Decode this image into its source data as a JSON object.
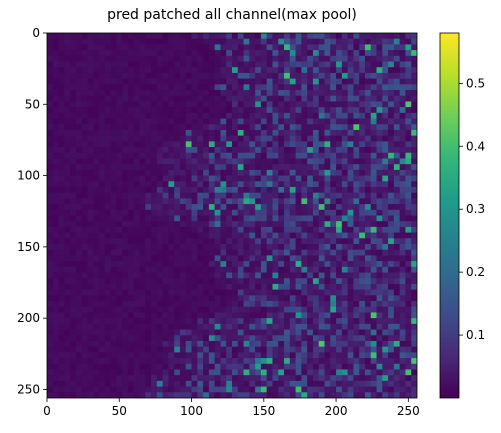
{
  "chart_data": {
    "type": "heatmap",
    "title": "pred patched all channel(max pool)",
    "xlabel": "",
    "ylabel": "",
    "xlim": [
      0,
      256
    ],
    "ylim": [
      256,
      0
    ],
    "xticks": [
      0,
      50,
      100,
      150,
      200,
      250
    ],
    "yticks": [
      0,
      50,
      100,
      150,
      200,
      250
    ],
    "colormap": "viridis",
    "colorbar": {
      "range": [
        0,
        0.58
      ],
      "ticks": [
        0.1,
        0.2,
        0.3,
        0.4,
        0.5
      ],
      "tick_labels": [
        "0.1",
        "0.2",
        "0.3",
        "0.4",
        "0.5"
      ]
    },
    "description_regions": [
      {
        "cols": [
          0,
          128
        ],
        "rows": [
          0,
          256
        ],
        "level": "near 0 (dark purple)"
      },
      {
        "cols": [
          128,
          256
        ],
        "rows": [
          0,
          256
        ],
        "level": "noisy 0.0-0.4"
      }
    ]
  },
  "colors": {
    "viridis_low": "#440154",
    "viridis_mid": "#21918c",
    "viridis_high": "#fde725"
  }
}
